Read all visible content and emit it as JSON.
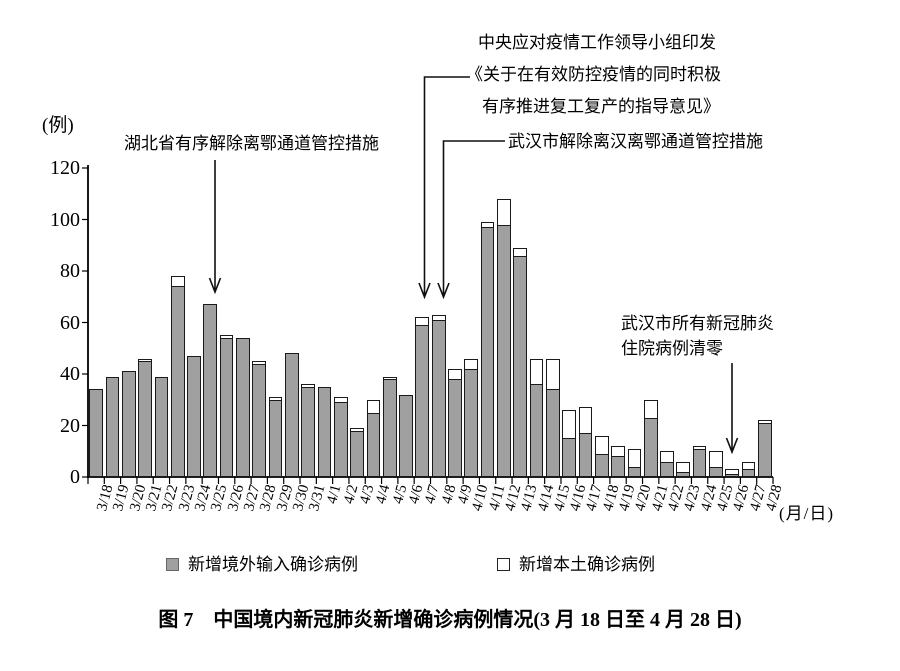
{
  "figure": {
    "caption": "图 7　中国境内新冠肺炎新增确诊病例情况(3 月 18 日至 4 月 28 日)",
    "y_unit": "(例)",
    "x_unit": "(月/日)"
  },
  "legend": {
    "imported_label": "新增境外输入确诊病例",
    "local_label": "新增本土确诊病例"
  },
  "annotations": {
    "hubei": "湖北省有序解除离鄂通道管控措施",
    "central_line1": "中央应对疫情工作领导小组印发",
    "central_line2": "《关于在有效防控疫情的同时积极",
    "central_line3": "有序推进复工复产的指导意见》",
    "wuhan_lift": "武汉市解除离汉离鄂通道管控措施",
    "wuhan_clear_line1": "武汉市所有新冠肺炎",
    "wuhan_clear_line2": "住院病例清零"
  },
  "colors": {
    "imported_fill": "#a0a0a0",
    "local_fill": "#ffffff",
    "bar_border": "#1a1a1a",
    "axis": "#000000",
    "text": "#000000"
  },
  "chart_data": {
    "type": "bar",
    "stacked": true,
    "title": "中国境内新冠肺炎新增确诊病例情况(3月18日至4月28日)",
    "xlabel": "月/日",
    "ylabel": "例",
    "ylim": [
      0,
      120
    ],
    "y_ticks": [
      0,
      20,
      40,
      60,
      80,
      100,
      120
    ],
    "grid": false,
    "legend_position": "bottom",
    "categories": [
      "3/18",
      "3/19",
      "3/20",
      "3/21",
      "3/22",
      "3/23",
      "3/24",
      "3/25",
      "3/26",
      "3/27",
      "3/28",
      "3/29",
      "3/30",
      "3/31",
      "4/1",
      "4/2",
      "4/3",
      "4/4",
      "4/5",
      "4/6",
      "4/7",
      "4/8",
      "4/9",
      "4/10",
      "4/11",
      "4/12",
      "4/13",
      "4/14",
      "4/15",
      "4/16",
      "4/17",
      "4/18",
      "4/19",
      "4/20",
      "4/21",
      "4/22",
      "4/23",
      "4/24",
      "4/25",
      "4/26",
      "4/27",
      "4/28"
    ],
    "series": [
      {
        "name": "新增境外输入确诊病例",
        "values": [
          34,
          39,
          41,
          45,
          39,
          74,
          47,
          67,
          54,
          54,
          44,
          30,
          48,
          35,
          35,
          29,
          18,
          25,
          38,
          32,
          59,
          61,
          38,
          42,
          97,
          98,
          86,
          36,
          34,
          15,
          17,
          9,
          8,
          4,
          23,
          6,
          2,
          11,
          4,
          1,
          3,
          21
        ]
      },
      {
        "name": "新增本土确诊病例",
        "values": [
          0,
          0,
          0,
          1,
          0,
          4,
          0,
          0,
          1,
          0,
          1,
          1,
          0,
          1,
          0,
          2,
          1,
          5,
          1,
          0,
          3,
          2,
          4,
          4,
          2,
          10,
          3,
          10,
          12,
          11,
          10,
          7,
          4,
          7,
          7,
          4,
          4,
          1,
          6,
          2,
          3,
          1
        ]
      }
    ],
    "totals": [
      34,
      39,
      41,
      46,
      39,
      78,
      47,
      67,
      55,
      54,
      45,
      31,
      48,
      36,
      35,
      31,
      19,
      30,
      39,
      32,
      62,
      63,
      42,
      46,
      99,
      108,
      89,
      46,
      46,
      26,
      27,
      16,
      12,
      11,
      30,
      10,
      6,
      12,
      10,
      3,
      6,
      22
    ],
    "annotated_points": [
      {
        "category": "3/25",
        "text": "湖北省有序解除离鄂通道管控措施"
      },
      {
        "category": "4/7",
        "text": "中央应对疫情工作领导小组印发《关于在有效防控疫情的同时积极有序推进复工复产的指导意见》"
      },
      {
        "category": "4/8",
        "text": "武汉市解除离汉离鄂通道管控措施"
      },
      {
        "category": "4/26",
        "text": "武汉市所有新冠肺炎住院病例清零"
      }
    ]
  }
}
